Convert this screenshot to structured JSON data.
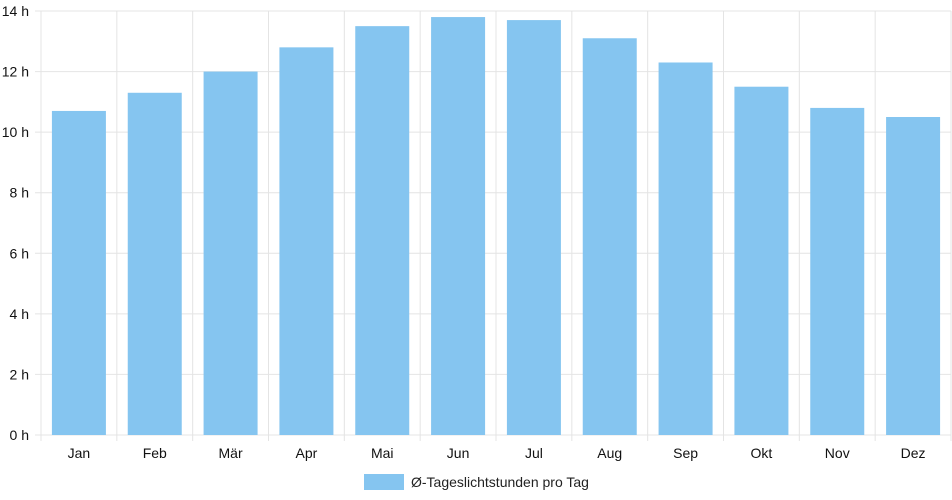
{
  "colors": {
    "bar_fill": "#85c5f0",
    "grid": "#e4e4e4",
    "axis": "#d0d0d0"
  },
  "chart_data": {
    "type": "bar",
    "title": "",
    "xlabel": "",
    "ylabel": "",
    "categories": [
      "Jan",
      "Feb",
      "Mär",
      "Apr",
      "Mai",
      "Jun",
      "Jul",
      "Aug",
      "Sep",
      "Okt",
      "Nov",
      "Dez"
    ],
    "series": [
      {
        "name": "Ø-Tageslichtstunden pro Tag",
        "values": [
          10.7,
          11.3,
          12.0,
          12.8,
          13.5,
          13.8,
          13.7,
          13.1,
          12.3,
          11.5,
          10.8,
          10.5
        ]
      }
    ],
    "ylim": [
      0,
      14
    ],
    "yticks": [
      "0 h",
      "2 h",
      "4 h",
      "6 h",
      "8 h",
      "10 h",
      "12 h",
      "14 h"
    ],
    "grid": true,
    "legend_position": "bottom"
  }
}
